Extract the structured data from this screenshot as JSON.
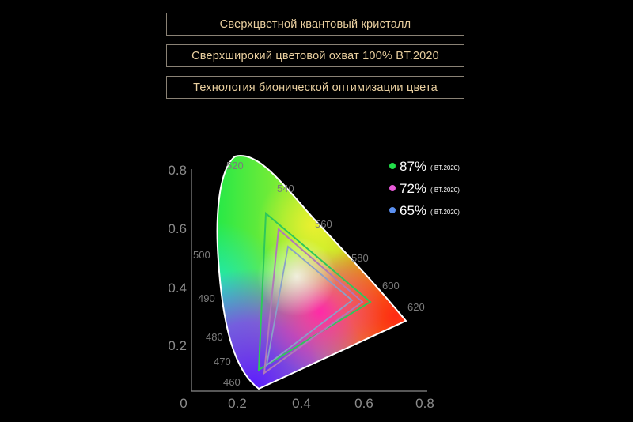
{
  "features": [
    "Сверхцветной квантовый кристалл",
    "Сверхширокий цветовой охват 100% BT.2020",
    "Технология бионической оптимизации цвета"
  ],
  "axes": {
    "x_ticks": [
      "0",
      "0.2",
      "0.4",
      "0.6",
      "0.8"
    ],
    "y_ticks": [
      "0.8",
      "0.6",
      "0.4",
      "0.2"
    ]
  },
  "wavelengths": [
    "520",
    "540",
    "560",
    "580",
    "600",
    "620",
    "500",
    "490",
    "480",
    "470",
    "460"
  ],
  "legend": [
    {
      "percent": "87%",
      "standard": "( BT.2020)",
      "color": "#22e04a"
    },
    {
      "percent": "72%",
      "standard": "( BT.2020)",
      "color": "#e85ad8"
    },
    {
      "percent": "65%",
      "standard": "( BT.2020)",
      "color": "#5a8ff0"
    }
  ]
}
